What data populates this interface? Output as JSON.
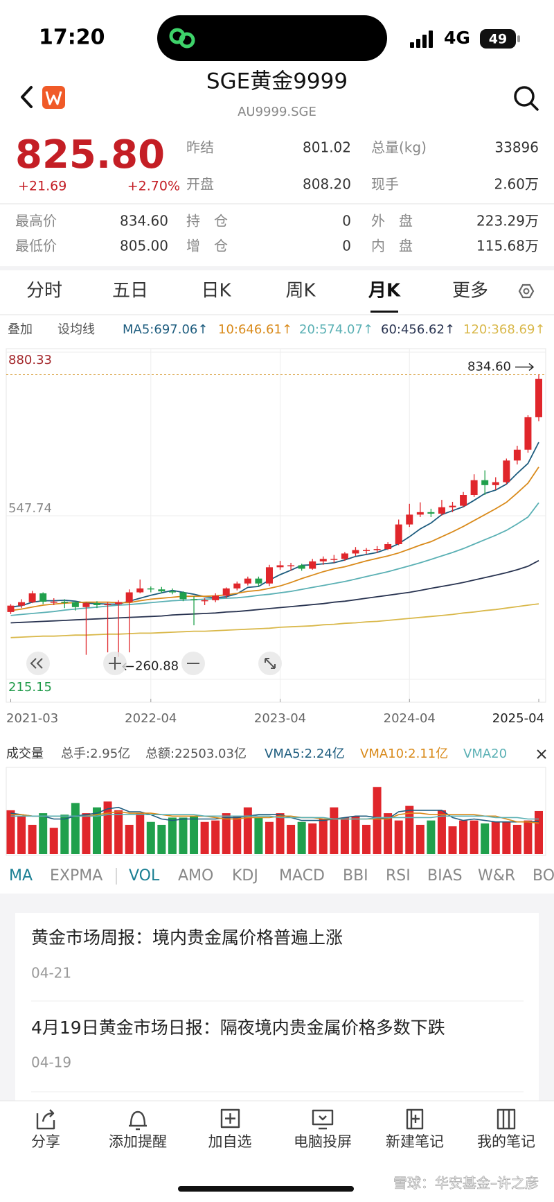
{
  "status": {
    "time": "17:20",
    "network": "4G",
    "battery": "49"
  },
  "header": {
    "title": "SGE黄金9999",
    "subtitle": "AU9999.SGE"
  },
  "quote": {
    "price": "825.80",
    "change": "+21.69",
    "change_pct": "+2.70%",
    "fields": [
      {
        "label": "昨结",
        "value": "801.02"
      },
      {
        "label": "开盘",
        "value": "808.20"
      },
      {
        "label": "总量(kg)",
        "value": "33896"
      },
      {
        "label": "现手",
        "value": "2.60万"
      }
    ],
    "stats": [
      {
        "label": "最高价",
        "value": "834.60"
      },
      {
        "label": "最低价",
        "value": "805.00"
      },
      {
        "label": "持　仓",
        "value": "0"
      },
      {
        "label": "增　仓",
        "value": "0"
      },
      {
        "label": "外　盘",
        "value": "223.29万"
      },
      {
        "label": "内　盘",
        "value": "115.68万"
      }
    ]
  },
  "tabs": {
    "items": [
      "分时",
      "五日",
      "日K",
      "周K",
      "月K",
      "更多"
    ],
    "active": 4
  },
  "ma_bar": {
    "buttons": [
      "叠加",
      "设均线"
    ]
  },
  "chart_data": {
    "type": "candlestick",
    "legend": [
      "MA5:697.06↑",
      "10:646.61↑",
      "20:574.07↑",
      "60:456.62↑",
      "120:368.69↑"
    ],
    "categories": [
      "2021-03",
      null,
      null,
      null,
      null,
      null,
      null,
      null,
      null,
      null,
      null,
      null,
      null,
      "2022-04",
      null,
      null,
      null,
      null,
      null,
      null,
      null,
      null,
      null,
      null,
      null,
      "2023-04",
      null,
      null,
      null,
      null,
      null,
      null,
      null,
      null,
      null,
      null,
      null,
      "2024-04",
      null,
      null,
      null,
      null,
      null,
      null,
      null,
      null,
      null,
      null,
      null,
      "2025-04"
    ],
    "ylim": [
      215.15,
      880.33
    ],
    "yticks": [
      880.33,
      547.74,
      215.15
    ],
    "ytick_colors": [
      "#a3262a",
      "#888888",
      "#1f9a48"
    ],
    "grid": true,
    "up_color": "#e0262b",
    "down_color": "#20a04c",
    "high_marker": {
      "value": 834.6,
      "label": "834.60"
    },
    "low_marker": {
      "value": 260.88,
      "label": "260.88"
    },
    "candles": [
      [
        352,
        368,
        348,
        365
      ],
      [
        365,
        378,
        360,
        372
      ],
      [
        372,
        395,
        370,
        390
      ],
      [
        390,
        392,
        368,
        373
      ],
      [
        373,
        380,
        366,
        373
      ],
      [
        373,
        378,
        360,
        372
      ],
      [
        372,
        374,
        355,
        362
      ],
      [
        362,
        372,
        265,
        370
      ],
      [
        370,
        374,
        360,
        366
      ],
      [
        366,
        372,
        270,
        368
      ],
      [
        368,
        376,
        260.88,
        372
      ],
      [
        372,
        398,
        270,
        392
      ],
      [
        392,
        418,
        390,
        400
      ],
      [
        400,
        404,
        392,
        398
      ],
      [
        398,
        403,
        390,
        394
      ],
      [
        394,
        400,
        388,
        392
      ],
      [
        392,
        394,
        374,
        378
      ],
      [
        378,
        384,
        325,
        376
      ],
      [
        376,
        380,
        366,
        376
      ],
      [
        376,
        390,
        372,
        385
      ],
      [
        385,
        402,
        380,
        400
      ],
      [
        400,
        414,
        396,
        410
      ],
      [
        410,
        424,
        406,
        420
      ],
      [
        420,
        424,
        404,
        410
      ],
      [
        410,
        448,
        405,
        443
      ],
      [
        443,
        456,
        438,
        447
      ],
      [
        447,
        452,
        436,
        447
      ],
      [
        447,
        450,
        436,
        440
      ],
      [
        440,
        460,
        438,
        455
      ],
      [
        455,
        465,
        448,
        460
      ],
      [
        460,
        468,
        452,
        460
      ],
      [
        460,
        474,
        456,
        471
      ],
      [
        471,
        484,
        466,
        478
      ],
      [
        478,
        482,
        470,
        478
      ],
      [
        480,
        486,
        472,
        480
      ],
      [
        480,
        494,
        478,
        490
      ],
      [
        490,
        540,
        488,
        530
      ],
      [
        530,
        572,
        525,
        550
      ],
      [
        550,
        575,
        545,
        555
      ],
      [
        555,
        562,
        545,
        552
      ],
      [
        552,
        580,
        548,
        565
      ],
      [
        565,
        576,
        555,
        568
      ],
      [
        568,
        596,
        565,
        590
      ],
      [
        590,
        632,
        586,
        620
      ],
      [
        620,
        640,
        590,
        610
      ],
      [
        610,
        626,
        600,
        616
      ],
      [
        616,
        664,
        612,
        660
      ],
      [
        660,
        690,
        652,
        682
      ],
      [
        682,
        752,
        676,
        748
      ],
      [
        748,
        834.6,
        740,
        825.8
      ]
    ],
    "ma_lines": [
      {
        "color": "#1d5c7e",
        "values": [
          362,
          365,
          372,
          375,
          375,
          376,
          374,
          370,
          369,
          368,
          368,
          374,
          380,
          386,
          391,
          396,
          392,
          388,
          383,
          381,
          383,
          389,
          402,
          404,
          417,
          428,
          437,
          447,
          448,
          450,
          452,
          458,
          465,
          469,
          473,
          481,
          491,
          505,
          521,
          533,
          550,
          558,
          566,
          579,
          593,
          600,
          612,
          634,
          654,
          697.06
        ]
      },
      {
        "color": "#d98a1a",
        "values": [
          355,
          358,
          362,
          366,
          368,
          370,
          371,
          372,
          372,
          372,
          371,
          371,
          375,
          378,
          380,
          382,
          384,
          384,
          384,
          385,
          387,
          390,
          394,
          396,
          400,
          405,
          412,
          420,
          427,
          434,
          440,
          444,
          450,
          456,
          461,
          466,
          472,
          480,
          488,
          495,
          505,
          515,
          526,
          538,
          550,
          562,
          575,
          594,
          614,
          646.61
        ]
      },
      {
        "color": "#5ab0b4",
        "values": [
          345,
          347,
          349,
          351,
          353,
          356,
          358,
          360,
          362,
          364,
          366,
          367,
          369,
          371,
          373,
          375,
          376,
          377,
          378,
          379,
          380,
          381,
          383,
          386,
          388,
          391,
          394,
          398,
          402,
          406,
          410,
          414,
          419,
          424,
          429,
          434,
          440,
          446,
          452,
          459,
          466,
          473,
          481,
          490,
          499,
          508,
          518,
          531,
          545,
          574.07
        ]
      },
      {
        "color": "#283350",
        "values": [
          330,
          331,
          332,
          333,
          334,
          335,
          336,
          337,
          338,
          339,
          340,
          341,
          342,
          343,
          344,
          346,
          347,
          348,
          349,
          350,
          352,
          353,
          355,
          357,
          359,
          361,
          363,
          365,
          367,
          369,
          372,
          374,
          377,
          380,
          383,
          386,
          389,
          392,
          396,
          400,
          404,
          408,
          412,
          417,
          422,
          427,
          432,
          438,
          445,
          456.62
        ]
      },
      {
        "color": "#d9b84a",
        "values": [
          300,
          301,
          302,
          303,
          303,
          304,
          305,
          305,
          306,
          307,
          307,
          308,
          309,
          309,
          310,
          311,
          312,
          313,
          313,
          314,
          315,
          316,
          317,
          318,
          319,
          321,
          322,
          323,
          324,
          326,
          327,
          329,
          330,
          332,
          333,
          335,
          337,
          339,
          341,
          343,
          345,
          347,
          350,
          352,
          355,
          357,
          360,
          363,
          366,
          368.69
        ]
      }
    ],
    "volume": {
      "header": [
        "成交量",
        "总手:2.95亿",
        "总额:22503.03亿",
        "VMA5:2.24亿",
        "VMA10:2.11亿",
        "VMA20"
      ],
      "ylim": [
        0,
        5.8
      ],
      "values": [
        3.0,
        2.6,
        2.0,
        2.8,
        1.8,
        2.7,
        3.5,
        2.8,
        3.2,
        3.6,
        3.0,
        2.0,
        2.8,
        2.2,
        2.0,
        2.5,
        2.5,
        2.6,
        2.2,
        2.3,
        2.8,
        2.6,
        3.2,
        2.5,
        2.2,
        2.8,
        2.0,
        2.2,
        2.1,
        2.4,
        3.2,
        2.5,
        2.6,
        2.0,
        4.6,
        2.8,
        2.3,
        3.3,
        2.0,
        2.3,
        3.0,
        1.9,
        2.3,
        2.3,
        2.1,
        2.2,
        2.2,
        2.0,
        2.3,
        2.95
      ],
      "vma": [
        {
          "color": "#1d5c7e",
          "values": [
            2.8,
            2.7,
            2.6,
            2.6,
            2.4,
            2.4,
            2.6,
            2.7,
            2.8,
            3.1,
            3.2,
            2.9,
            2.9,
            2.7,
            2.4,
            2.3,
            2.4,
            2.4,
            2.4,
            2.4,
            2.5,
            2.5,
            2.6,
            2.7,
            2.7,
            2.7,
            2.5,
            2.3,
            2.3,
            2.3,
            2.4,
            2.5,
            2.6,
            2.6,
            2.5,
            2.4,
            2.9,
            3.0,
            3.0,
            3.0,
            3.0,
            2.5,
            2.3,
            2.4,
            2.3,
            2.2,
            2.2,
            2.2,
            2.2,
            2.24
          ]
        },
        {
          "color": "#d98a1a",
          "values": [
            2.7,
            2.7,
            2.6,
            2.6,
            2.6,
            2.6,
            2.6,
            2.6,
            2.7,
            2.8,
            2.9,
            2.8,
            2.8,
            2.8,
            2.7,
            2.6,
            2.6,
            2.6,
            2.6,
            2.5,
            2.4,
            2.4,
            2.5,
            2.5,
            2.5,
            2.6,
            2.6,
            2.5,
            2.5,
            2.4,
            2.4,
            2.4,
            2.4,
            2.4,
            2.4,
            2.4,
            2.7,
            2.8,
            2.8,
            2.7,
            2.7,
            2.7,
            2.7,
            2.7,
            2.6,
            2.6,
            2.4,
            2.2,
            2.2,
            2.11
          ]
        },
        {
          "color": "#5ab0b4",
          "values": [
            2.6,
            2.6,
            2.6,
            2.6,
            2.6,
            2.6,
            2.6,
            2.6,
            2.6,
            2.7,
            2.7,
            2.7,
            2.7,
            2.7,
            2.7,
            2.7,
            2.7,
            2.7,
            2.6,
            2.6,
            2.6,
            2.6,
            2.6,
            2.6,
            2.6,
            2.5,
            2.5,
            2.5,
            2.5,
            2.5,
            2.4,
            2.4,
            2.4,
            2.4,
            2.5,
            2.5,
            2.5,
            2.5,
            2.5,
            2.5,
            2.6,
            2.6,
            2.6,
            2.6,
            2.6,
            2.5,
            2.5,
            2.5,
            2.4,
            2.4
          ]
        }
      ]
    }
  },
  "indicators": {
    "items": [
      "MA",
      "EXPMA",
      "VOL",
      "AMO",
      "KDJ",
      "MACD",
      "BBI",
      "RSI",
      "BIAS",
      "W&R",
      "BO"
    ],
    "active": [
      0,
      2
    ]
  },
  "news": [
    {
      "title": "黄金市场周报：境内贵金属价格普遍上涨",
      "date": "04-21"
    },
    {
      "title": "4月19日黄金市场日报：隔夜境内贵金属价格多数下跌",
      "date": "04-19"
    }
  ],
  "toolbar": [
    "分享",
    "添加提醒",
    "加自选",
    "电脑投屏",
    "新建笔记",
    "我的笔记"
  ],
  "watermark": "雪球：华安基金–许之彦"
}
